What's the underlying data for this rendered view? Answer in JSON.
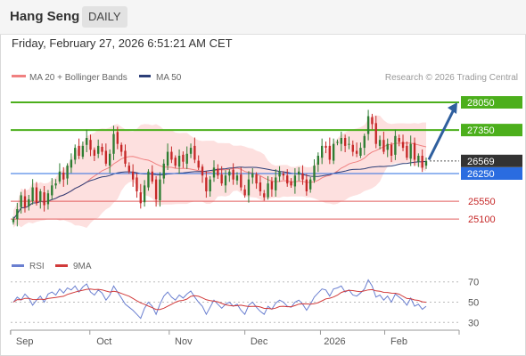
{
  "header": {
    "instrument": "Hang Seng",
    "period": "DAILY",
    "datetime": "Friday, February 27, 2026 6:51:21 AM CET"
  },
  "legend": {
    "bollinger": "MA 20 + Bollinger Bands",
    "ma50": "MA 50",
    "credit": "Research © 2026 Trading Central"
  },
  "colors": {
    "up": "#2e7d32",
    "down": "#c62828",
    "bollinger_fill": "#fde0df",
    "bollinger_line": "#f08080",
    "ma50": "#2c3e78",
    "resistance": "#4caf1c",
    "support_blue": "#2a6ce0",
    "support_red": "#e25d5d",
    "last_price": "#333333",
    "arrow": "#2f5f9e",
    "rsi": "#6a7fd0",
    "rsi_ma": "#d13a3a"
  },
  "chart_data": [
    {
      "type": "candlestick",
      "title": "Hang Seng",
      "ylim": [
        24450,
        28500
      ],
      "x_labels": [
        "Sep",
        "Oct",
        "Nov",
        "Dec",
        "2026",
        "Feb"
      ],
      "levels": [
        {
          "value": 28050,
          "label": "28050",
          "kind": "resistance"
        },
        {
          "value": 27350,
          "label": "27350",
          "kind": "resistance"
        },
        {
          "value": 26569,
          "label": "26569",
          "kind": "last"
        },
        {
          "value": 26250,
          "label": "26250",
          "kind": "support_blue"
        },
        {
          "value": 25550,
          "label": "25550",
          "kind": "support_red"
        },
        {
          "value": 25100,
          "label": "25100",
          "kind": "support_red"
        }
      ],
      "forecast_arrow": {
        "from": 26600,
        "to": 28050
      },
      "closes": [
        25100,
        25350,
        25700,
        25400,
        25600,
        25900,
        25500,
        25800,
        25450,
        25750,
        25950,
        26000,
        26300,
        26100,
        26450,
        26600,
        26900,
        26700,
        26950,
        27150,
        26850,
        26700,
        26950,
        26800,
        26500,
        26750,
        27250,
        27000,
        26800,
        26500,
        26300,
        26100,
        25800,
        25500,
        25950,
        26300,
        26050,
        25600,
        26100,
        26500,
        26800,
        26600,
        26450,
        26700,
        26550,
        26750,
        26900,
        26600,
        26400,
        26200,
        25800,
        26100,
        26400,
        26200,
        26000,
        26200,
        26300,
        26100,
        26200,
        25900,
        25700,
        26100,
        26250,
        26000,
        25800,
        25650,
        26000,
        25850,
        26150,
        26300,
        26200,
        26000,
        25950,
        26200,
        26300,
        26100,
        25800,
        26100,
        26450,
        26700,
        26950,
        26900,
        26600,
        27000,
        27050,
        27150,
        26950,
        27000,
        26800,
        26750,
        26900,
        27200,
        27700,
        27500,
        27000,
        27100,
        26800,
        27000,
        26700,
        27200,
        27050,
        26900,
        26650,
        27000,
        26600,
        26700,
        26400,
        26569
      ]
    },
    {
      "type": "line",
      "title": "",
      "series": [
        {
          "name": "RSI"
        },
        {
          "name": "9MA"
        }
      ],
      "ylim": [
        25,
        75
      ],
      "ticks": [
        70,
        50,
        30
      ],
      "rsi_values": [
        50,
        55,
        52,
        58,
        54,
        47,
        52,
        56,
        50,
        58,
        60,
        57,
        63,
        59,
        64,
        62,
        66,
        60,
        65,
        68,
        60,
        57,
        62,
        59,
        52,
        57,
        66,
        60,
        54,
        48,
        45,
        42,
        38,
        34,
        44,
        50,
        46,
        38,
        48,
        56,
        60,
        55,
        52,
        57,
        54,
        58,
        61,
        55,
        50,
        46,
        38,
        45,
        52,
        48,
        44,
        48,
        50,
        46,
        48,
        42,
        38,
        47,
        50,
        45,
        41,
        38,
        46,
        43,
        49,
        52,
        50,
        46,
        45,
        50,
        52,
        48,
        42,
        48,
        55,
        59,
        63,
        62,
        56,
        63,
        64,
        66,
        60,
        62,
        57,
        56,
        59,
        63,
        72,
        66,
        55,
        57,
        52,
        56,
        50,
        58,
        55,
        52,
        47,
        54,
        46,
        48,
        43,
        46
      ]
    }
  ]
}
